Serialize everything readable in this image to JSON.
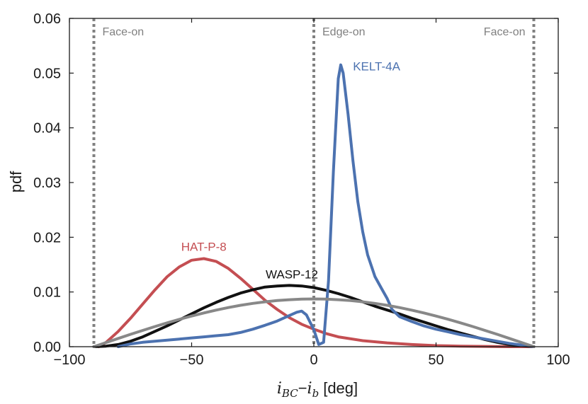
{
  "chart_data": {
    "type": "line",
    "title": "",
    "xlabel": "i_BC − i_b [deg]",
    "xlabel_parts": {
      "i": "i",
      "bc_sub": "BC",
      "minus": "−",
      "b_sub": "b",
      "unit": "[deg]"
    },
    "ylabel": "pdf",
    "xlim": [
      -100,
      100
    ],
    "ylim": [
      0,
      0.06
    ],
    "xticks": [
      -100,
      -50,
      0,
      50,
      100
    ],
    "xtick_labels": [
      "−100",
      "−50",
      "0",
      "50",
      "100"
    ],
    "yticks": [
      0,
      0.01,
      0.02,
      0.03,
      0.04,
      0.05,
      0.06
    ],
    "ytick_labels": [
      "0.00",
      "0.01",
      "0.02",
      "0.03",
      "0.04",
      "0.05",
      "0.06"
    ],
    "grid": false,
    "vlines": [
      {
        "x": -90,
        "label": "Face-on",
        "label_anchor": "right-of-line",
        "color": "#808080"
      },
      {
        "x": 0,
        "label": "Edge-on",
        "label_anchor": "right-of-line",
        "color": "#808080"
      },
      {
        "x": 90,
        "label": "Face-on",
        "label_anchor": "left-of-line",
        "color": "#808080"
      }
    ],
    "series": [
      {
        "name": "HAT-P-8",
        "color": "#c44e52",
        "label_pos": [
          -45,
          0.0175
        ],
        "x": [
          -88,
          -85,
          -80,
          -75,
          -70,
          -65,
          -60,
          -55,
          -50,
          -45,
          -40,
          -35,
          -30,
          -25,
          -20,
          -15,
          -10,
          -5,
          0,
          5,
          10,
          20,
          30,
          40,
          50,
          60,
          70,
          80,
          90
        ],
        "values": [
          0.0,
          0.0008,
          0.0028,
          0.0052,
          0.0078,
          0.0104,
          0.0128,
          0.0146,
          0.0158,
          0.0161,
          0.0156,
          0.0143,
          0.0125,
          0.0105,
          0.0085,
          0.0068,
          0.0053,
          0.0041,
          0.0032,
          0.0024,
          0.0018,
          0.0011,
          0.0007,
          0.0004,
          0.0002,
          0.0001,
          5e-05,
          0.0,
          0.0
        ]
      },
      {
        "name": "WASP-12",
        "color": "#111111",
        "label_pos": [
          -9,
          0.0125
        ],
        "x": [
          -90,
          -85,
          -80,
          -75,
          -70,
          -65,
          -60,
          -55,
          -50,
          -45,
          -40,
          -35,
          -30,
          -25,
          -20,
          -15,
          -10,
          -5,
          0,
          5,
          10,
          15,
          20,
          25,
          30,
          35,
          40,
          45,
          50,
          55,
          60,
          65,
          70,
          75,
          80,
          85,
          90
        ],
        "values": [
          0.0,
          0.0001,
          0.0004,
          0.001,
          0.0018,
          0.0028,
          0.0038,
          0.0049,
          0.006,
          0.0071,
          0.0081,
          0.009,
          0.0098,
          0.0104,
          0.0109,
          0.0111,
          0.0112,
          0.0111,
          0.0108,
          0.0103,
          0.0097,
          0.009,
          0.0082,
          0.0074,
          0.0067,
          0.006,
          0.0052,
          0.0045,
          0.0038,
          0.0031,
          0.0025,
          0.0019,
          0.0013,
          0.0008,
          0.0004,
          0.0002,
          0.0
        ]
      },
      {
        "name": "KELT-4A",
        "color": "#4c72b0",
        "label_pos": [
          16,
          0.0505
        ],
        "x": [
          -80,
          -75,
          -70,
          -65,
          -60,
          -55,
          -50,
          -45,
          -40,
          -35,
          -30,
          -25,
          -20,
          -15,
          -10,
          -7,
          -5,
          -3,
          0,
          2,
          4,
          6,
          8,
          10,
          11,
          12,
          14,
          16,
          18,
          20,
          22,
          25,
          28,
          30,
          32,
          35,
          40,
          45,
          50,
          55,
          60,
          65,
          70,
          75,
          80,
          85,
          90
        ],
        "values": [
          0.0,
          0.0005,
          0.0008,
          0.001,
          0.0012,
          0.0014,
          0.0016,
          0.0018,
          0.002,
          0.0022,
          0.0026,
          0.0032,
          0.0039,
          0.0047,
          0.0057,
          0.0063,
          0.0065,
          0.0058,
          0.0031,
          0.0004,
          0.0008,
          0.012,
          0.032,
          0.049,
          0.0515,
          0.05,
          0.0425,
          0.034,
          0.0265,
          0.021,
          0.0168,
          0.0128,
          0.0104,
          0.0088,
          0.0068,
          0.0055,
          0.0046,
          0.0038,
          0.0032,
          0.0027,
          0.0022,
          0.0018,
          0.0014,
          0.001,
          0.0006,
          0.0003,
          0.0
        ]
      },
      {
        "name": "",
        "color": "#888888",
        "label_pos": null,
        "x": [
          -90,
          -85,
          -80,
          -75,
          -70,
          -65,
          -60,
          -55,
          -50,
          -45,
          -40,
          -35,
          -30,
          -25,
          -20,
          -15,
          -10,
          -5,
          0,
          5,
          10,
          15,
          20,
          25,
          30,
          35,
          40,
          45,
          50,
          55,
          60,
          65,
          70,
          75,
          80,
          85,
          90
        ],
        "values": [
          0.0,
          0.00076,
          0.00151,
          0.00226,
          0.00298,
          0.00368,
          0.00436,
          0.005,
          0.0056,
          0.00617,
          0.00669,
          0.00715,
          0.00756,
          0.00791,
          0.0082,
          0.00843,
          0.00859,
          0.00869,
          0.00873,
          0.00869,
          0.00859,
          0.00843,
          0.0082,
          0.00791,
          0.00756,
          0.00715,
          0.00669,
          0.00617,
          0.0056,
          0.005,
          0.00436,
          0.00368,
          0.00298,
          0.00226,
          0.00151,
          0.00076,
          0.0
        ]
      }
    ]
  }
}
